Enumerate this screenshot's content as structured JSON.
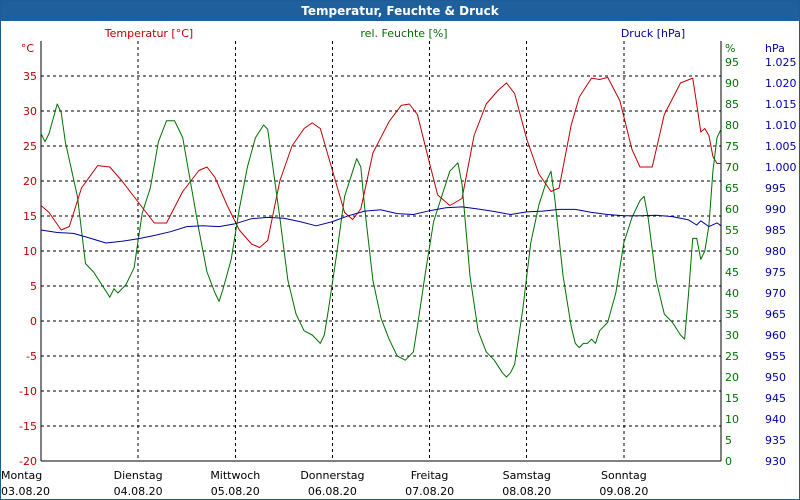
{
  "window": {
    "title": "Temperatur, Feuchte & Druck"
  },
  "chart_data": {
    "type": "line",
    "title": "Temperatur, Feuchte & Druck",
    "grid": true,
    "x": {
      "day_labels": [
        "Montag",
        "Dienstag",
        "Mittwoch",
        "Donnerstag",
        "Freitag",
        "Samstag",
        "Sonntag"
      ],
      "date_labels": [
        "03.08.20",
        "04.08.20",
        "05.08.20",
        "06.08.20",
        "07.08.20",
        "08.08.20",
        "09.08.20"
      ],
      "range": [
        "03.08.20 00:00",
        "10.08.20 00:00"
      ]
    },
    "axes": {
      "temperature": {
        "label": "Temperatur [°C]",
        "unit": "°C",
        "ylim": [
          -20,
          40
        ],
        "ticks": [
          -20,
          -15,
          -10,
          -5,
          0,
          5,
          10,
          15,
          20,
          25,
          30,
          35
        ],
        "color": "#c00000"
      },
      "humidity": {
        "label": "rel. Feuchte [%]",
        "unit": "%",
        "ylim": [
          0,
          100
        ],
        "ticks": [
          0,
          5,
          10,
          15,
          20,
          25,
          30,
          35,
          40,
          45,
          50,
          55,
          60,
          65,
          70,
          75,
          80,
          85,
          90,
          95
        ],
        "color": "#007000"
      },
      "pressure": {
        "label": "Druck [hPa]",
        "unit": "hPa",
        "ylim": [
          930,
          1030
        ],
        "ticks": [
          "930",
          "935",
          "940",
          "945",
          "950",
          "955",
          "960",
          "965",
          "970",
          "975",
          "980",
          "985",
          "990",
          "995",
          "1.000",
          "1.005",
          "1.010",
          "1.015",
          "1.020",
          "1.025"
        ],
        "color": "#0000a0"
      }
    },
    "series": [
      {
        "name": "Temperatur [°C]",
        "axis": "temperature",
        "color": "#c00000",
        "points": [
          [
            "03.08.20 00:00",
            16.5
          ],
          [
            "03.08.20 02:00",
            15.5
          ],
          [
            "03.08.20 05:00",
            13.0
          ],
          [
            "03.08.20 07:00",
            13.5
          ],
          [
            "03.08.20 10:00",
            19.0
          ],
          [
            "03.08.20 14:00",
            22.2
          ],
          [
            "03.08.20 17:00",
            22.0
          ],
          [
            "03.08.20 20:00",
            20.0
          ],
          [
            "04.08.20 00:00",
            17.0
          ],
          [
            "04.08.20 04:00",
            14.0
          ],
          [
            "04.08.20 07:00",
            14.0
          ],
          [
            "04.08.20 11:00",
            18.5
          ],
          [
            "04.08.20 15:00",
            21.5
          ],
          [
            "04.08.20 17:00",
            22.0
          ],
          [
            "04.08.20 19:00",
            20.5
          ],
          [
            "04.08.20 22:00",
            16.5
          ],
          [
            "05.08.20 01:00",
            13.0
          ],
          [
            "05.08.20 04:00",
            11.0
          ],
          [
            "05.08.20 06:00",
            10.5
          ],
          [
            "05.08.20 08:00",
            11.5
          ],
          [
            "05.08.20 11:00",
            20.0
          ],
          [
            "05.08.20 14:00",
            25.0
          ],
          [
            "05.08.20 17:00",
            27.5
          ],
          [
            "05.08.20 19:00",
            28.3
          ],
          [
            "05.08.20 21:00",
            27.5
          ],
          [
            "06.08.20 00:00",
            21.5
          ],
          [
            "06.08.20 03:00",
            15.5
          ],
          [
            "06.08.20 05:00",
            14.5
          ],
          [
            "06.08.20 07:00",
            16.0
          ],
          [
            "06.08.20 10:00",
            24.0
          ],
          [
            "06.08.20 14:00",
            28.5
          ],
          [
            "06.08.20 17:00",
            30.8
          ],
          [
            "06.08.20 19:00",
            31.0
          ],
          [
            "06.08.20 21:00",
            29.5
          ],
          [
            "07.08.20 00:00",
            22.5
          ],
          [
            "07.08.20 02:00",
            18.0
          ],
          [
            "07.08.20 05:00",
            16.5
          ],
          [
            "07.08.20 08:00",
            17.5
          ],
          [
            "07.08.20 11:00",
            26.5
          ],
          [
            "07.08.20 14:00",
            31.0
          ],
          [
            "07.08.20 17:00",
            33.0
          ],
          [
            "07.08.20 19:00",
            34.0
          ],
          [
            "07.08.20 21:00",
            32.5
          ],
          [
            "08.08.20 00:00",
            26.0
          ],
          [
            "08.08.20 03:00",
            21.0
          ],
          [
            "08.08.20 06:00",
            18.5
          ],
          [
            "08.08.20 08:00",
            19.0
          ],
          [
            "08.08.20 11:00",
            28.0
          ],
          [
            "08.08.20 13:00",
            32.0
          ],
          [
            "08.08.20 16:00",
            34.7
          ],
          [
            "08.08.20 18:00",
            34.5
          ],
          [
            "08.08.20 20:00",
            34.8
          ],
          [
            "08.08.20 23:00",
            31.5
          ],
          [
            "09.08.20 02:00",
            24.5
          ],
          [
            "09.08.20 04:00",
            22.0
          ],
          [
            "09.08.20 07:00",
            22.0
          ],
          [
            "09.08.20 10:00",
            29.5
          ],
          [
            "09.08.20 14:00",
            34.0
          ],
          [
            "09.08.20 17:00",
            34.7
          ],
          [
            "09.08.20 18:00",
            31.0
          ],
          [
            "09.08.20 19:00",
            27.0
          ],
          [
            "09.08.20 20:00",
            27.5
          ],
          [
            "09.08.20 21:00",
            26.5
          ],
          [
            "09.08.20 22:00",
            23.5
          ],
          [
            "09.08.20 23:00",
            22.5
          ],
          [
            "10.08.20 00:00",
            22.5
          ]
        ]
      },
      {
        "name": "rel. Feuchte [%]",
        "axis": "humidity",
        "color": "#007000",
        "points": [
          [
            "03.08.20 00:00",
            78
          ],
          [
            "03.08.20 01:00",
            76
          ],
          [
            "03.08.20 02:00",
            78
          ],
          [
            "03.08.20 04:00",
            85
          ],
          [
            "03.08.20 05:00",
            83
          ],
          [
            "03.08.20 06:00",
            76
          ],
          [
            "03.08.20 09:00",
            63
          ],
          [
            "03.08.20 11:00",
            47
          ],
          [
            "03.08.20 13:00",
            45
          ],
          [
            "03.08.20 15:00",
            42
          ],
          [
            "03.08.20 17:00",
            39
          ],
          [
            "03.08.20 18:00",
            41
          ],
          [
            "03.08.20 19:00",
            40
          ],
          [
            "03.08.20 21:00",
            42
          ],
          [
            "03.08.20 23:00",
            46
          ],
          [
            "04.08.20 01:00",
            59
          ],
          [
            "04.08.20 03:00",
            65
          ],
          [
            "04.08.20 05:00",
            76
          ],
          [
            "04.08.20 07:00",
            81
          ],
          [
            "04.08.20 09:00",
            81
          ],
          [
            "04.08.20 11:00",
            77
          ],
          [
            "04.08.20 13:00",
            66
          ],
          [
            "04.08.20 15:00",
            55
          ],
          [
            "04.08.20 17:00",
            45
          ],
          [
            "04.08.20 19:00",
            40
          ],
          [
            "04.08.20 20:00",
            38
          ],
          [
            "04.08.20 21:00",
            41
          ],
          [
            "04.08.20 23:00",
            48
          ],
          [
            "05.08.20 01:00",
            60
          ],
          [
            "05.08.20 03:00",
            70
          ],
          [
            "05.08.20 05:00",
            77
          ],
          [
            "05.08.20 07:00",
            80
          ],
          [
            "05.08.20 08:00",
            79
          ],
          [
            "05.08.20 09:00",
            72
          ],
          [
            "05.08.20 11:00",
            58
          ],
          [
            "05.08.20 13:00",
            43
          ],
          [
            "05.08.20 15:00",
            35
          ],
          [
            "05.08.20 17:00",
            31
          ],
          [
            "05.08.20 19:00",
            30
          ],
          [
            "05.08.20 21:00",
            28
          ],
          [
            "05.08.20 22:00",
            30
          ],
          [
            "05.08.20 23:00",
            36
          ],
          [
            "06.08.20 01:00",
            49
          ],
          [
            "06.08.20 03:00",
            63
          ],
          [
            "06.08.20 05:00",
            69
          ],
          [
            "06.08.20 06:00",
            72
          ],
          [
            "06.08.20 07:00",
            70
          ],
          [
            "06.08.20 08:00",
            60
          ],
          [
            "06.08.20 10:00",
            43
          ],
          [
            "06.08.20 12:00",
            34
          ],
          [
            "06.08.20 14:00",
            29
          ],
          [
            "06.08.20 16:00",
            25
          ],
          [
            "06.08.20 18:00",
            24
          ],
          [
            "06.08.20 20:00",
            26
          ],
          [
            "06.08.20 21:00",
            32
          ],
          [
            "06.08.20 23:00",
            45
          ],
          [
            "07.08.20 01:00",
            57
          ],
          [
            "07.08.20 03:00",
            63
          ],
          [
            "07.08.20 05:00",
            69
          ],
          [
            "07.08.20 07:00",
            71
          ],
          [
            "07.08.20 08:00",
            66
          ],
          [
            "07.08.20 10:00",
            44
          ],
          [
            "07.08.20 12:00",
            31
          ],
          [
            "07.08.20 14:00",
            26
          ],
          [
            "07.08.20 16:00",
            24
          ],
          [
            "07.08.20 18:00",
            21
          ],
          [
            "07.08.20 19:00",
            20
          ],
          [
            "07.08.20 20:00",
            21
          ],
          [
            "07.08.20 21:00",
            23
          ],
          [
            "07.08.20 23:00",
            36
          ],
          [
            "08.08.20 01:00",
            52
          ],
          [
            "08.08.20 03:00",
            61
          ],
          [
            "08.08.20 05:00",
            67
          ],
          [
            "08.08.20 06:00",
            69
          ],
          [
            "08.08.20 07:00",
            62
          ],
          [
            "08.08.20 09:00",
            44
          ],
          [
            "08.08.20 11:00",
            32
          ],
          [
            "08.08.20 12:00",
            28
          ],
          [
            "08.08.20 13:00",
            27
          ],
          [
            "08.08.20 14:00",
            28
          ],
          [
            "08.08.20 15:00",
            28
          ],
          [
            "08.08.20 16:00",
            29
          ],
          [
            "08.08.20 17:00",
            28
          ],
          [
            "08.08.20 18:00",
            31
          ],
          [
            "08.08.20 20:00",
            33
          ],
          [
            "08.08.20 22:00",
            40
          ],
          [
            "09.08.20 00:00",
            52
          ],
          [
            "09.08.20 02:00",
            58
          ],
          [
            "09.08.20 04:00",
            62
          ],
          [
            "09.08.20 05:00",
            63
          ],
          [
            "09.08.20 06:00",
            58
          ],
          [
            "09.08.20 08:00",
            43
          ],
          [
            "09.08.20 10:00",
            35
          ],
          [
            "09.08.20 12:00",
            33
          ],
          [
            "09.08.20 14:00",
            30
          ],
          [
            "09.08.20 15:00",
            29
          ],
          [
            "09.08.20 16:00",
            40
          ],
          [
            "09.08.20 17:00",
            53
          ],
          [
            "09.08.20 18:00",
            53
          ],
          [
            "09.08.20 19:00",
            48
          ],
          [
            "09.08.20 20:00",
            50
          ],
          [
            "09.08.20 21:00",
            56
          ],
          [
            "09.08.20 22:00",
            69
          ],
          [
            "09.08.20 23:00",
            77
          ],
          [
            "10.08.20 00:00",
            79
          ]
        ]
      },
      {
        "name": "Druck [hPa]",
        "axis": "pressure",
        "color": "#0000a0",
        "points": [
          [
            "03.08.20 00:00",
            985.0
          ],
          [
            "03.08.20 04:00",
            984.4
          ],
          [
            "03.08.20 08:00",
            984.2
          ],
          [
            "03.08.20 12:00",
            983.1
          ],
          [
            "03.08.20 16:00",
            981.9
          ],
          [
            "03.08.20 20:00",
            982.3
          ],
          [
            "04.08.20 00:00",
            982.9
          ],
          [
            "04.08.20 04:00",
            983.7
          ],
          [
            "04.08.20 08:00",
            984.6
          ],
          [
            "04.08.20 12:00",
            985.8
          ],
          [
            "04.08.20 16:00",
            986.0
          ],
          [
            "04.08.20 20:00",
            985.8
          ],
          [
            "05.08.20 00:00",
            986.5
          ],
          [
            "05.08.20 04:00",
            987.7
          ],
          [
            "05.08.20 08:00",
            988.0
          ],
          [
            "05.08.20 12:00",
            987.8
          ],
          [
            "05.08.20 16:00",
            987.0
          ],
          [
            "05.08.20 20:00",
            986.0
          ],
          [
            "06.08.20 00:00",
            987.0
          ],
          [
            "06.08.20 04:00",
            988.4
          ],
          [
            "06.08.20 08:00",
            989.5
          ],
          [
            "06.08.20 12:00",
            989.8
          ],
          [
            "06.08.20 16:00",
            988.9
          ],
          [
            "06.08.20 20:00",
            988.7
          ],
          [
            "07.08.20 00:00",
            989.6
          ],
          [
            "07.08.20 04:00",
            990.3
          ],
          [
            "07.08.20 08:00",
            990.5
          ],
          [
            "07.08.20 12:00",
            990.0
          ],
          [
            "07.08.20 16:00",
            989.4
          ],
          [
            "07.08.20 20:00",
            988.7
          ],
          [
            "08.08.20 00:00",
            989.3
          ],
          [
            "08.08.20 04:00",
            989.5
          ],
          [
            "08.08.20 08:00",
            989.9
          ],
          [
            "08.08.20 12:00",
            989.9
          ],
          [
            "08.08.20 16:00",
            989.2
          ],
          [
            "08.08.20 20:00",
            988.7
          ],
          [
            "09.08.20 00:00",
            988.4
          ],
          [
            "09.08.20 04:00",
            988.4
          ],
          [
            "09.08.20 08:00",
            988.5
          ],
          [
            "09.08.20 12:00",
            988.2
          ],
          [
            "09.08.20 16:00",
            987.4
          ],
          [
            "09.08.20 18:00",
            986.2
          ],
          [
            "09.08.20 19:00",
            987.2
          ],
          [
            "09.08.20 21:00",
            985.8
          ],
          [
            "09.08.20 23:00",
            986.7
          ],
          [
            "10.08.20 00:00",
            986.0
          ]
        ]
      }
    ]
  }
}
